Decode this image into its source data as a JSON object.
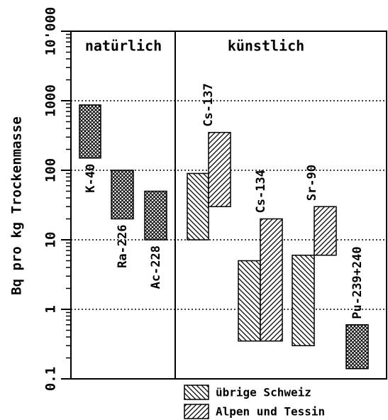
{
  "chart_data": {
    "type": "floating_bar",
    "ylabel": "Bq pro kg Trockenmasse",
    "log_scale": true,
    "ylim": [
      0.1,
      10000
    ],
    "yticks": [
      0.1,
      1,
      10,
      100,
      1000,
      {
        "value": 10000,
        "label": "10'000"
      }
    ],
    "grid": true,
    "sections": [
      "natürlich",
      "künstlich"
    ],
    "series": [
      {
        "name": "übrige Schweiz",
        "pattern": "backslash"
      },
      {
        "name": "Alpen und Tessin",
        "pattern": "slash"
      }
    ],
    "nuclides": [
      {
        "label": "K-40",
        "pattern": "crosshatch",
        "bars": [
          {
            "range": [
              150,
              870
            ]
          }
        ]
      },
      {
        "label": "Ra-226",
        "pattern": "crosshatch",
        "bars": [
          {
            "range": [
              20,
              100
            ]
          }
        ]
      },
      {
        "label": "Ac-228",
        "pattern": "crosshatch",
        "bars": [
          {
            "range": [
              10,
              50
            ]
          }
        ]
      },
      {
        "label": "Cs-137",
        "bars": [
          {
            "series": 0,
            "range": [
              10,
              90
            ]
          },
          {
            "series": 1,
            "range": [
              30,
              350
            ]
          }
        ]
      },
      {
        "label": "Cs-134",
        "bars": [
          {
            "series": 0,
            "range": [
              0.35,
              5
            ]
          },
          {
            "series": 1,
            "range": [
              0.35,
              20
            ]
          }
        ]
      },
      {
        "label": "Sr-90",
        "bars": [
          {
            "series": 0,
            "range": [
              0.3,
              6
            ]
          },
          {
            "series": 1,
            "range": [
              6,
              30
            ]
          }
        ]
      },
      {
        "label": "Pu-239+240",
        "pattern": "crosshatch",
        "bars": [
          {
            "range": [
              0.14,
              0.6
            ]
          }
        ]
      }
    ]
  }
}
